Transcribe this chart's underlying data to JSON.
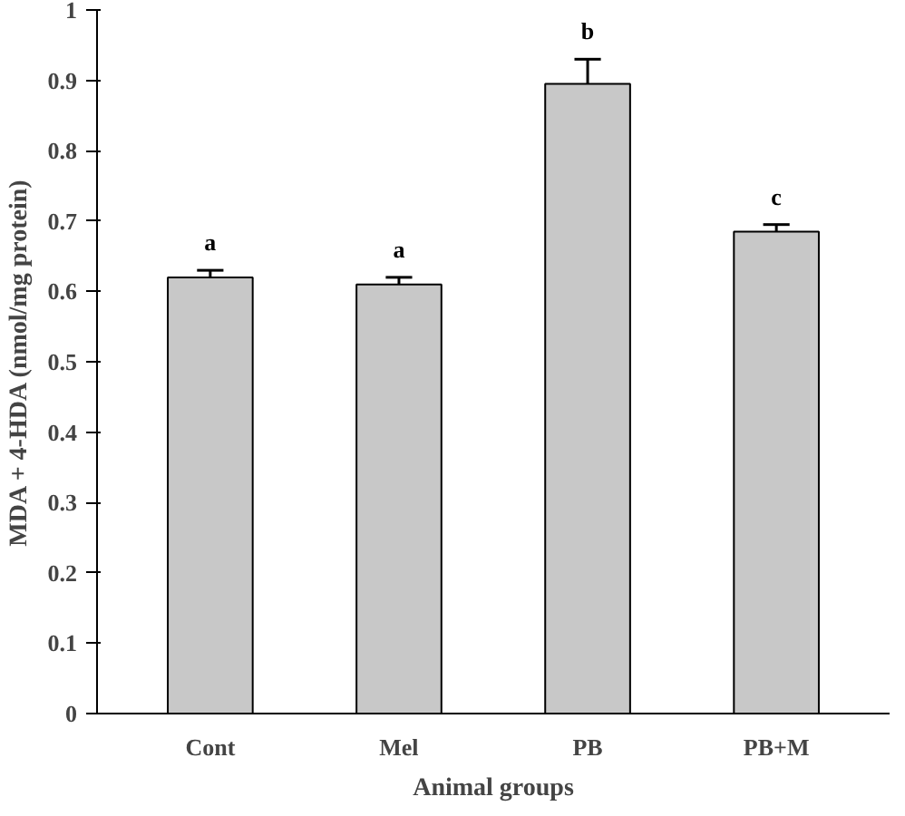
{
  "chart_data": {
    "type": "bar",
    "categories": [
      "Cont",
      "Mel",
      "PB",
      "PB+M"
    ],
    "values": [
      0.62,
      0.61,
      0.895,
      0.685
    ],
    "errors": [
      [
        0.62,
        0.63
      ],
      [
        0.61,
        0.62
      ],
      [
        0.895,
        0.93
      ],
      [
        0.685,
        0.695
      ]
    ],
    "color": "#c8c8c8",
    "xlabel": "Animal groups",
    "ylabel": "MDA + 4-HDA (nmol/mg protein)",
    "ylim": [
      0,
      1
    ],
    "yticks": [
      0,
      {
        "value": 0.1,
        "label": "0.1"
      },
      {
        "value": 0.2,
        "label": "0.2"
      },
      {
        "value": 0.3,
        "label": "0.3"
      },
      {
        "value": 0.4,
        "label": "0.4"
      },
      {
        "value": 0.5,
        "label": "0.5"
      },
      {
        "value": 0.6,
        "label": "0.6"
      },
      {
        "value": 0.7,
        "label": "0.7"
      },
      {
        "value": 0.8,
        "label": "0.8"
      },
      {
        "value": 0.9,
        "label": "0.9"
      },
      1
    ],
    "annotations": [
      "a",
      "a",
      "b",
      "c"
    ],
    "grid": false
  }
}
